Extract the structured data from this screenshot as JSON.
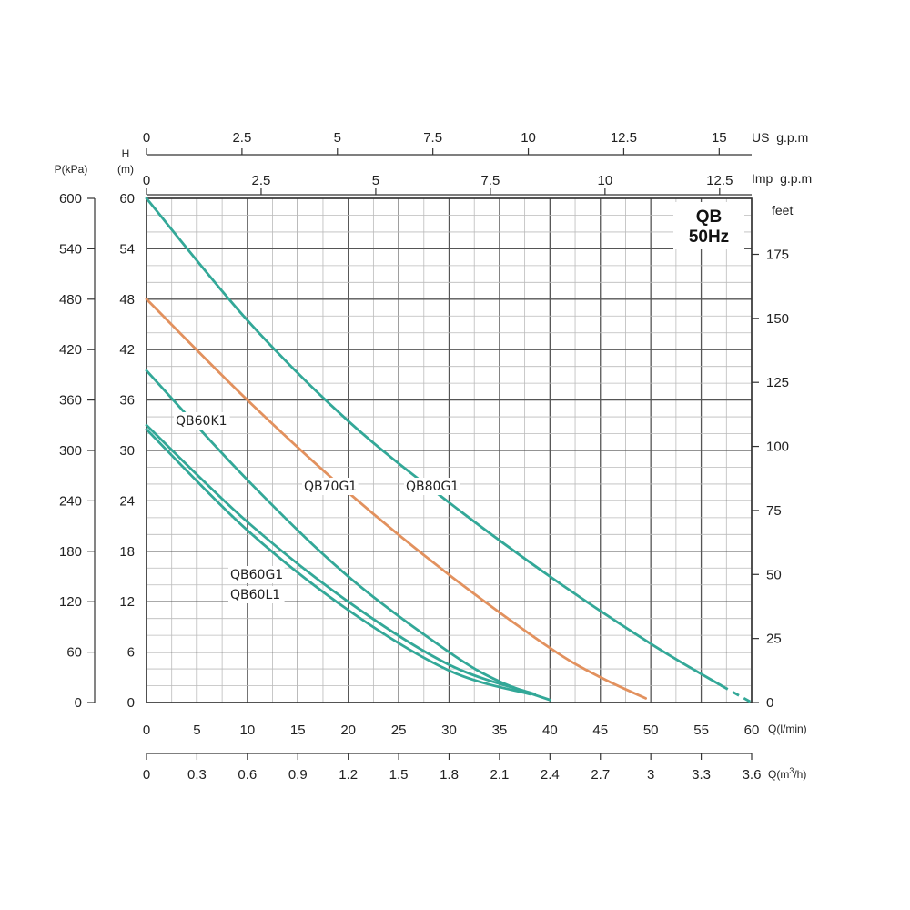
{
  "chart_data": {
    "type": "line",
    "badge": {
      "line1": "QB",
      "line2": "50Hz"
    },
    "x_lpm": {
      "label": "Q(l/min)",
      "ticks": [
        "0",
        "5",
        "10",
        "15",
        "20",
        "25",
        "30",
        "35",
        "40",
        "45",
        "50",
        "55",
        "60"
      ],
      "range": [
        0,
        60
      ]
    },
    "x_m3h": {
      "label": "Q(m³/h)",
      "label_base": "Q(m",
      "label_sup": "3",
      "label_end": "/h)",
      "ticks": [
        "0",
        "0.3",
        "0.6",
        "0.9",
        "1.2",
        "1.5",
        "1.8",
        "2.1",
        "2.4",
        "2.7",
        "3",
        "3.3",
        "3.6"
      ]
    },
    "x_us": {
      "label": "US  g.p.m",
      "ticks": [
        "0",
        "2.5",
        "5",
        "7.5",
        "10",
        "12.5",
        "15"
      ],
      "values": [
        0,
        2.5,
        5,
        7.5,
        10,
        12.5,
        15
      ]
    },
    "x_imp": {
      "label": "Imp  g.p.m",
      "ticks": [
        "0",
        "2.5",
        "5",
        "7.5",
        "10",
        "12.5"
      ],
      "values": [
        0,
        2.5,
        5,
        7.5,
        10,
        12.5
      ]
    },
    "y_h": {
      "label_line1": "H",
      "label_line2": "(m)",
      "ticks": [
        "0",
        "6",
        "12",
        "18",
        "24",
        "30",
        "36",
        "42",
        "48",
        "54",
        "60"
      ],
      "range": [
        0,
        60
      ]
    },
    "y_p": {
      "label": "P(kPa)",
      "ticks": [
        "0",
        "60",
        "120",
        "180",
        "240",
        "300",
        "360",
        "420",
        "480",
        "540",
        "600"
      ]
    },
    "y_feet": {
      "label": "feet",
      "ticks": [
        "0",
        "25",
        "50",
        "75",
        "100",
        "125",
        "150",
        "175"
      ],
      "values": [
        0,
        25,
        50,
        75,
        100,
        125,
        150,
        175
      ]
    },
    "grid": true,
    "colors": {
      "teal": "#33a898",
      "orange": "#e2915e"
    },
    "series": [
      {
        "name": "QB80G1",
        "color": "#33a898",
        "x": [
          0,
          10,
          20,
          30,
          40,
          50,
          57,
          60
        ],
        "y": [
          60,
          45.5,
          33.5,
          23.8,
          15,
          7,
          2,
          0
        ],
        "dashed_from": 57
      },
      {
        "name": "QB70G1",
        "color": "#e2915e",
        "x": [
          0,
          10,
          20,
          30,
          40,
          45,
          49.5
        ],
        "y": [
          48,
          36,
          25,
          15.2,
          6.5,
          3,
          0.5
        ]
      },
      {
        "name": "QB60K1",
        "color": "#33a898",
        "x": [
          0,
          10,
          20,
          30,
          35,
          40
        ],
        "y": [
          39.5,
          26.5,
          15,
          6,
          2.5,
          0.3
        ]
      },
      {
        "name": "QB60G1",
        "color": "#33a898",
        "x": [
          0,
          10,
          20,
          30,
          38.5
        ],
        "y": [
          33,
          21.5,
          12,
          4.5,
          1
        ]
      },
      {
        "name": "QB60L1",
        "color": "#33a898",
        "x": [
          0,
          10,
          20,
          30,
          38
        ],
        "y": [
          32.5,
          20.5,
          11,
          3.8,
          1
        ]
      }
    ],
    "labels": [
      "QB60K1",
      "QB70G1",
      "QB80G1",
      "QB60G1",
      "QB60L1"
    ]
  }
}
